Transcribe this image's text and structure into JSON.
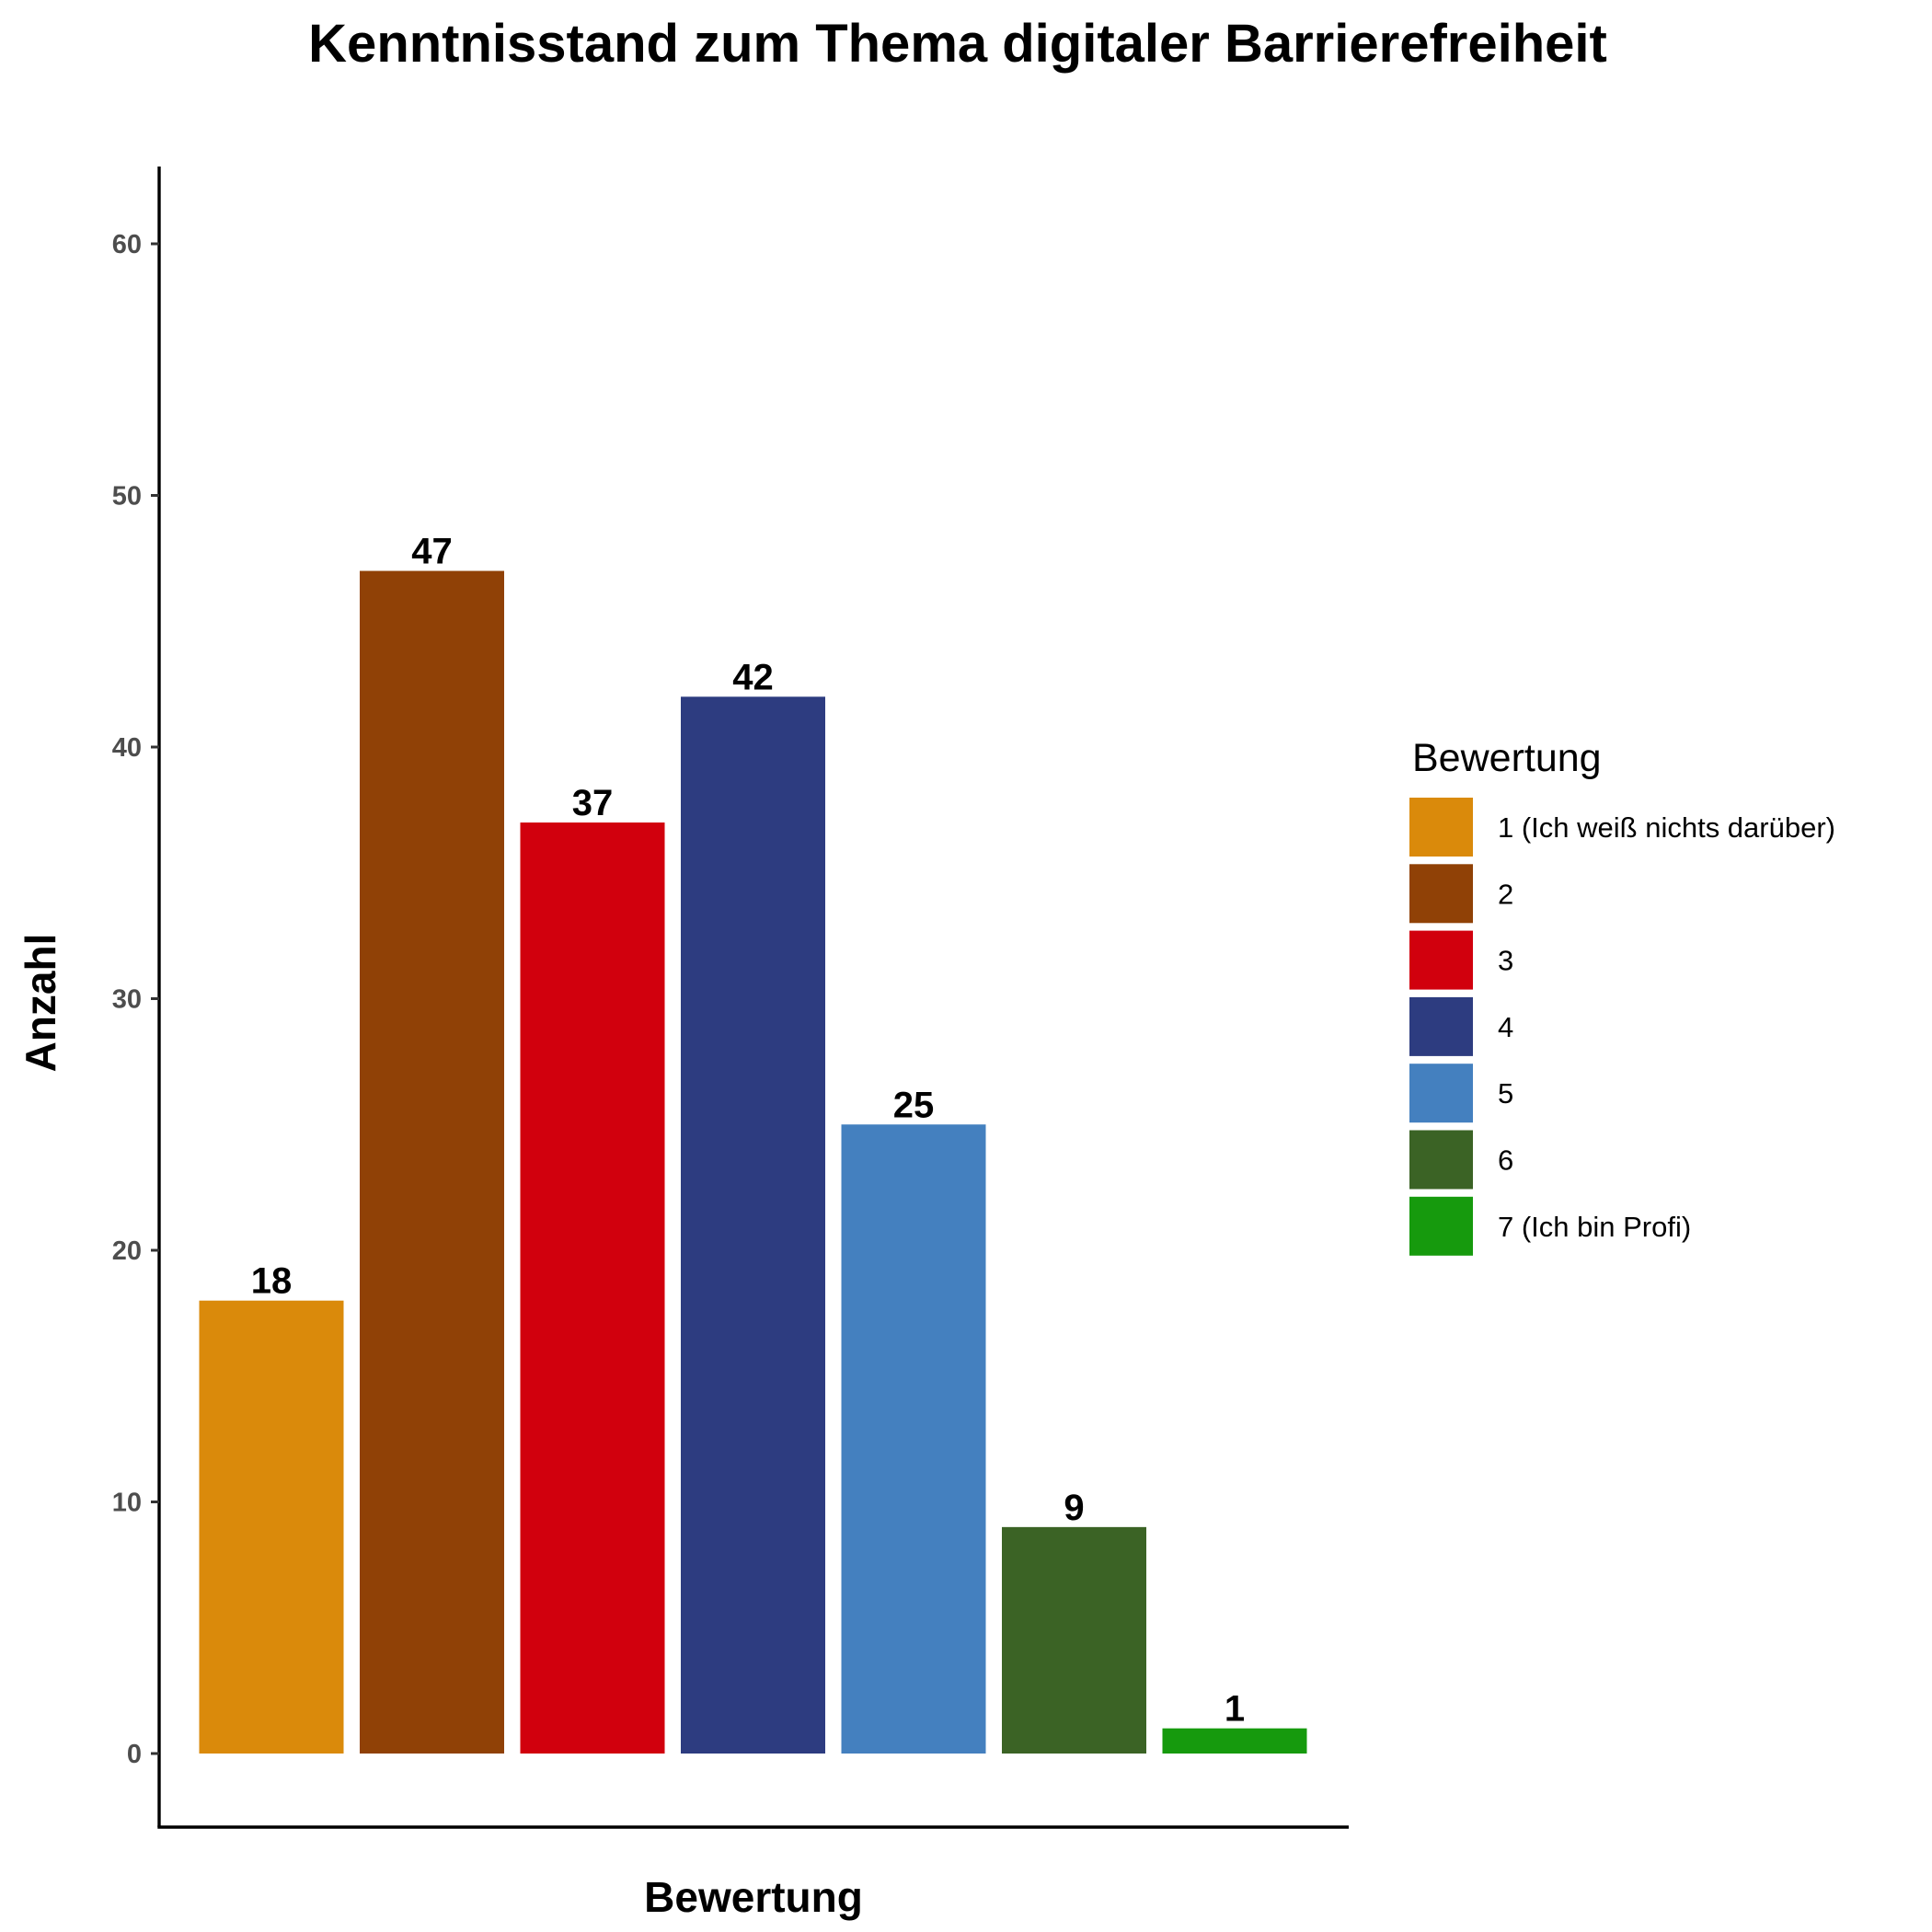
{
  "chart_data": {
    "type": "bar",
    "title": "Kenntnisstand zum Thema digitaler Barrierefreiheit",
    "xlabel": "Bewertung",
    "ylabel": "Anzahl",
    "categories": [
      "1 (Ich weiß nichts darüber)",
      "2",
      "3",
      "4",
      "5",
      "6",
      "7 (Ich bin Profi)"
    ],
    "values": [
      18,
      47,
      37,
      42,
      25,
      9,
      1
    ],
    "colors": [
      "#DA8A0B",
      "#904106",
      "#D1000D",
      "#2D3C80",
      "#4480BF",
      "#3B6325",
      "#169A0D"
    ],
    "ylim": [
      0,
      60
    ],
    "yticks": [
      0,
      10,
      20,
      30,
      40,
      50,
      60
    ],
    "grid": false,
    "legend": {
      "title": "Bewertung",
      "placement": "right"
    }
  }
}
